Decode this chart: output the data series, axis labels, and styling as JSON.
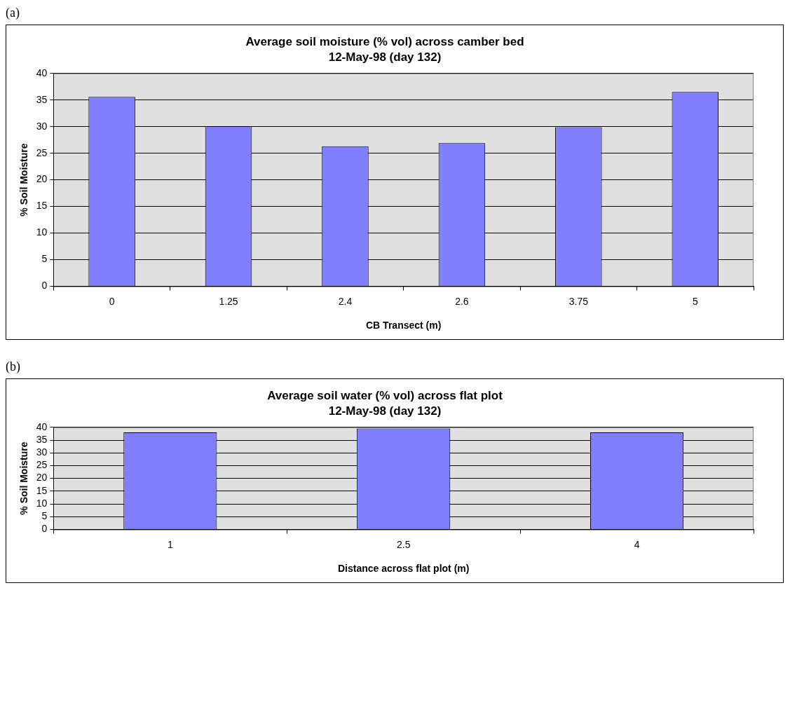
{
  "chart_data": [
    {
      "type": "bar",
      "title": "Average soil moisture (% vol) across camber bed",
      "subtitle": "12-May-98 (day 132)",
      "xlabel": "CB Transect (m)",
      "ylabel": "% Soil Moisture",
      "annotations": [
        "(a)"
      ],
      "categories": [
        "0",
        "1.25",
        "2.4",
        "2.6",
        "3.75",
        "5"
      ],
      "values": [
        35.6,
        30.1,
        26.3,
        26.9,
        29.9,
        36.5
      ],
      "color": "#8080ff",
      "ylim": [
        0,
        40
      ],
      "yticks": [
        0,
        5,
        10,
        15,
        20,
        25,
        30,
        35,
        40
      ],
      "grid": "y",
      "legend": false
    },
    {
      "type": "bar",
      "title": "Average soil water (% vol) across flat plot",
      "subtitle": "12-May-98 (day 132)",
      "xlabel": "Distance across flat plot (m)",
      "ylabel": "% Soil Moisture",
      "annotations": [
        "(b)"
      ],
      "categories": [
        "1",
        "2.5",
        "4"
      ],
      "values": [
        38.0,
        39.5,
        38.0
      ],
      "color": "#8080ff",
      "ylim": [
        0,
        40
      ],
      "yticks": [
        0,
        5,
        10,
        15,
        20,
        25,
        30,
        35,
        40
      ],
      "grid": "y",
      "legend": false
    }
  ]
}
